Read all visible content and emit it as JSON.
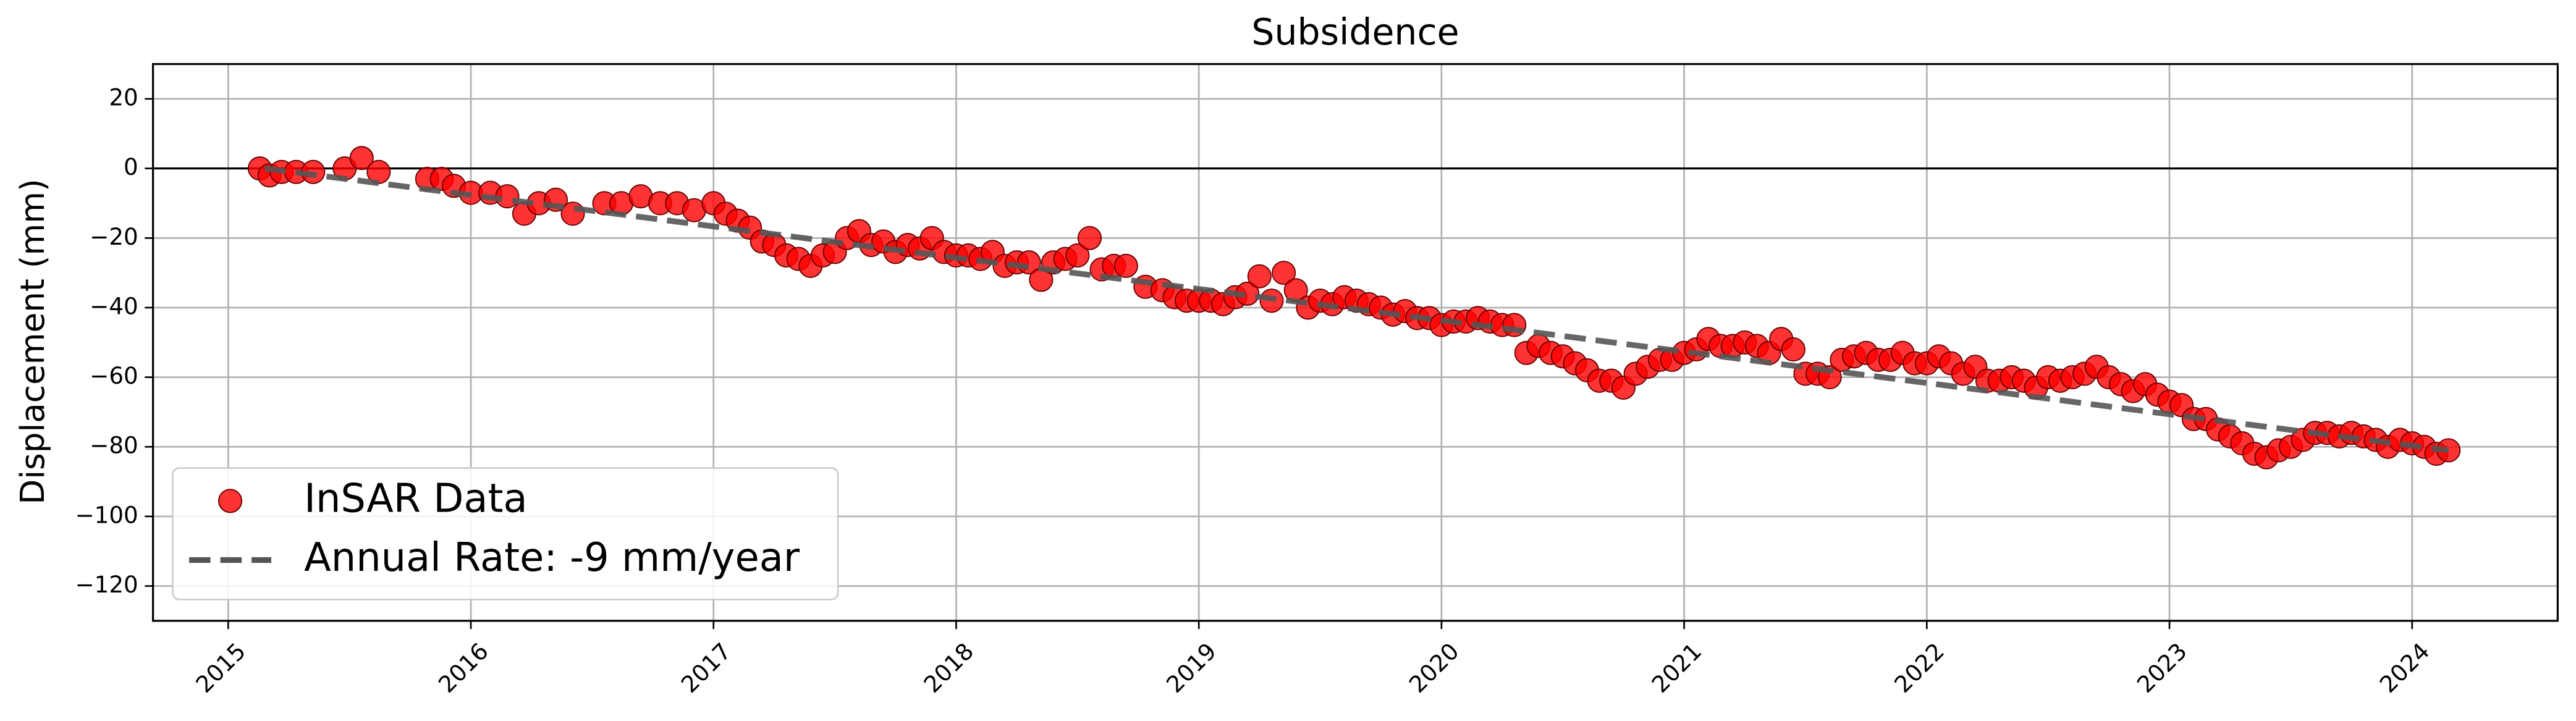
{
  "chart_data": {
    "type": "scatter",
    "title": "Subsidence",
    "ylabel": "Displacement (mm)",
    "xlim": [
      2014.69,
      2024.6
    ],
    "xticks": [
      2015,
      2016,
      2017,
      2018,
      2019,
      2020,
      2021,
      2022,
      2023,
      2024
    ],
    "ylim": [
      -130,
      30
    ],
    "yticks": [
      {
        "value": -120,
        "label": "−120"
      },
      {
        "value": -100,
        "label": "−100"
      },
      {
        "value": -80,
        "label": "−80"
      },
      {
        "value": -60,
        "label": "−60"
      },
      {
        "value": -40,
        "label": "−40"
      },
      {
        "value": -20,
        "label": "−20"
      },
      0,
      20
    ],
    "grid": true,
    "reference_line": 0,
    "legend": "lower left",
    "series": [
      {
        "name": "InSAR Data",
        "type": "scatter",
        "color": "#ff0000",
        "x": [
          2015.13,
          2015.17,
          2015.22,
          2015.28,
          2015.35,
          2015.48,
          2015.55,
          2015.62,
          2015.82,
          2015.88,
          2015.93,
          2016.0,
          2016.08,
          2016.15,
          2016.22,
          2016.28,
          2016.35,
          2016.42,
          2016.55,
          2016.62,
          2016.7,
          2016.78,
          2016.85,
          2016.92,
          2017.0,
          2017.05,
          2017.1,
          2017.15,
          2017.2,
          2017.25,
          2017.3,
          2017.35,
          2017.4,
          2017.45,
          2017.5,
          2017.55,
          2017.6,
          2017.65,
          2017.7,
          2017.75,
          2017.8,
          2017.85,
          2017.9,
          2017.95,
          2018.0,
          2018.05,
          2018.1,
          2018.15,
          2018.2,
          2018.25,
          2018.3,
          2018.35,
          2018.4,
          2018.45,
          2018.5,
          2018.55,
          2018.6,
          2018.65,
          2018.7,
          2018.78,
          2018.85,
          2018.9,
          2018.95,
          2019.0,
          2019.05,
          2019.1,
          2019.15,
          2019.2,
          2019.25,
          2019.3,
          2019.35,
          2019.4,
          2019.45,
          2019.5,
          2019.55,
          2019.6,
          2019.65,
          2019.7,
          2019.75,
          2019.8,
          2019.85,
          2019.9,
          2019.95,
          2020.0,
          2020.05,
          2020.1,
          2020.15,
          2020.2,
          2020.25,
          2020.3,
          2020.35,
          2020.4,
          2020.45,
          2020.5,
          2020.55,
          2020.6,
          2020.65,
          2020.7,
          2020.75,
          2020.8,
          2020.85,
          2020.9,
          2020.95,
          2021.0,
          2021.05,
          2021.1,
          2021.15,
          2021.2,
          2021.25,
          2021.3,
          2021.35,
          2021.4,
          2021.45,
          2021.5,
          2021.55,
          2021.6,
          2021.65,
          2021.7,
          2021.75,
          2021.8,
          2021.85,
          2021.9,
          2021.95,
          2022.0,
          2022.05,
          2022.1,
          2022.15,
          2022.2,
          2022.25,
          2022.3,
          2022.35,
          2022.4,
          2022.45,
          2022.5,
          2022.55,
          2022.6,
          2022.65,
          2022.7,
          2022.75,
          2022.8,
          2022.85,
          2022.9,
          2022.95,
          2023.0,
          2023.05,
          2023.1,
          2023.15,
          2023.2,
          2023.25,
          2023.3,
          2023.35,
          2023.4,
          2023.45,
          2023.5,
          2023.55,
          2023.6,
          2023.65,
          2023.7,
          2023.75,
          2023.8,
          2023.85,
          2023.9,
          2023.95,
          2024.0,
          2024.05,
          2024.1,
          2024.15
        ],
        "values": [
          0,
          -2,
          -1,
          -1,
          -1,
          0,
          3,
          -1,
          -3,
          -3,
          -5,
          -7,
          -7,
          -8,
          -13,
          -10,
          -9,
          -13,
          -10,
          -10,
          -8,
          -10,
          -10,
          -12,
          -10,
          -13,
          -15,
          -17,
          -21,
          -22,
          -25,
          -26,
          -28,
          -25,
          -24,
          -20,
          -18,
          -22,
          -21,
          -24,
          -22,
          -23,
          -20,
          -24,
          -25,
          -25,
          -26,
          -24,
          -28,
          -27,
          -27,
          -32,
          -27,
          -26,
          -25,
          -20,
          -29,
          -28,
          -28,
          -34,
          -35,
          -37,
          -38,
          -38,
          -38,
          -39,
          -37,
          -36,
          -31,
          -38,
          -30,
          -35,
          -40,
          -38,
          -39,
          -37,
          -38,
          -39,
          -40,
          -42,
          -41,
          -43,
          -43,
          -45,
          -44,
          -44,
          -43,
          -44,
          -45,
          -45,
          -53,
          -51,
          -53,
          -54,
          -56,
          -58,
          -61,
          -61,
          -63,
          -59,
          -57,
          -55,
          -55,
          -53,
          -52,
          -49,
          -51,
          -51,
          -50,
          -51,
          -53,
          -49,
          -52,
          -59,
          -59,
          -60,
          -55,
          -54,
          -53,
          -55,
          -55,
          -53,
          -56,
          -56,
          -54,
          -56,
          -59,
          -57,
          -61,
          -61,
          -60,
          -61,
          -63,
          -60,
          -61,
          -60,
          -59,
          -57,
          -60,
          -62,
          -64,
          -62,
          -65,
          -67,
          -68,
          -72,
          -72,
          -75,
          -77,
          -79,
          -82,
          -83,
          -81,
          -80,
          -78,
          -76,
          -76,
          -77,
          -76,
          -77,
          -78,
          -80,
          -78,
          -79,
          -80,
          -82,
          -81
        ]
      },
      {
        "name": "Annual Rate: -9 mm/year",
        "type": "line",
        "color": "#555555",
        "x": [
          2015.15,
          2024.15
        ],
        "values": [
          0,
          -81
        ]
      }
    ]
  }
}
